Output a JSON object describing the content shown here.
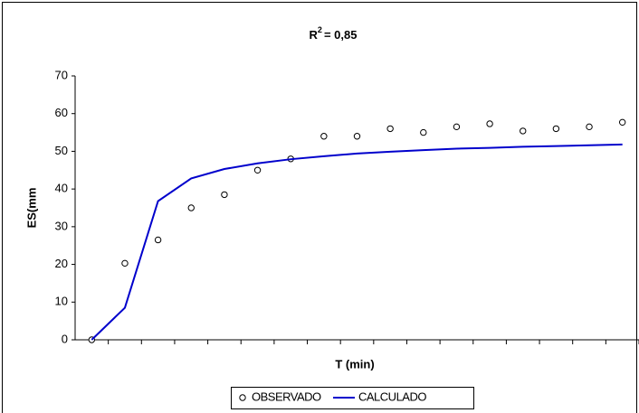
{
  "chart_data": {
    "type": "line",
    "title": {
      "base": "R",
      "sup": "2",
      "rest": "= 0,85"
    },
    "ylabel": "ES(mm",
    "xlabel": "T (min)",
    "categories": [
      null,
      null,
      null,
      null,
      null,
      null,
      null,
      null,
      null,
      null,
      null,
      null,
      null,
      null,
      null,
      null,
      null
    ],
    "series": [
      {
        "name": "OBSERVADO",
        "color": "#000000",
        "marker": "circle",
        "values": [
          0,
          20.3,
          26.5,
          35,
          38.5,
          45,
          48,
          54,
          54,
          56,
          55,
          56.5,
          57.3,
          55.4,
          56,
          56.5,
          57.7
        ]
      },
      {
        "name": "CALCULADO",
        "color": "#0000cc",
        "marker": "line",
        "values": [
          0,
          8.5,
          36.8,
          42.8,
          45.3,
          46.8,
          47.9,
          48.7,
          49.4,
          49.9,
          50.3,
          50.7,
          50.9,
          51.2,
          51.4,
          51.6,
          51.8
        ]
      }
    ],
    "ylim": [
      0,
      70
    ],
    "yticks": [
      0,
      10,
      20,
      30,
      40,
      50,
      60,
      70
    ],
    "grid": false,
    "legend": "bottom"
  }
}
